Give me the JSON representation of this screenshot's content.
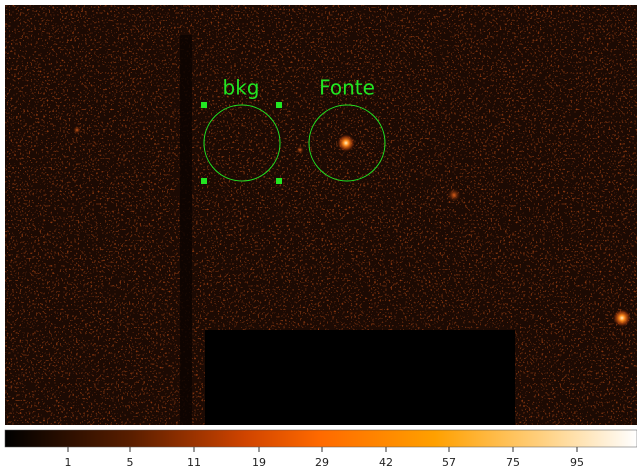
{
  "regions": [
    {
      "label": "bkg"
    },
    {
      "label": "Fonte"
    }
  ],
  "colorbar": {
    "ticks": [
      1,
      5,
      11,
      19,
      29,
      42,
      57,
      75,
      95
    ]
  }
}
